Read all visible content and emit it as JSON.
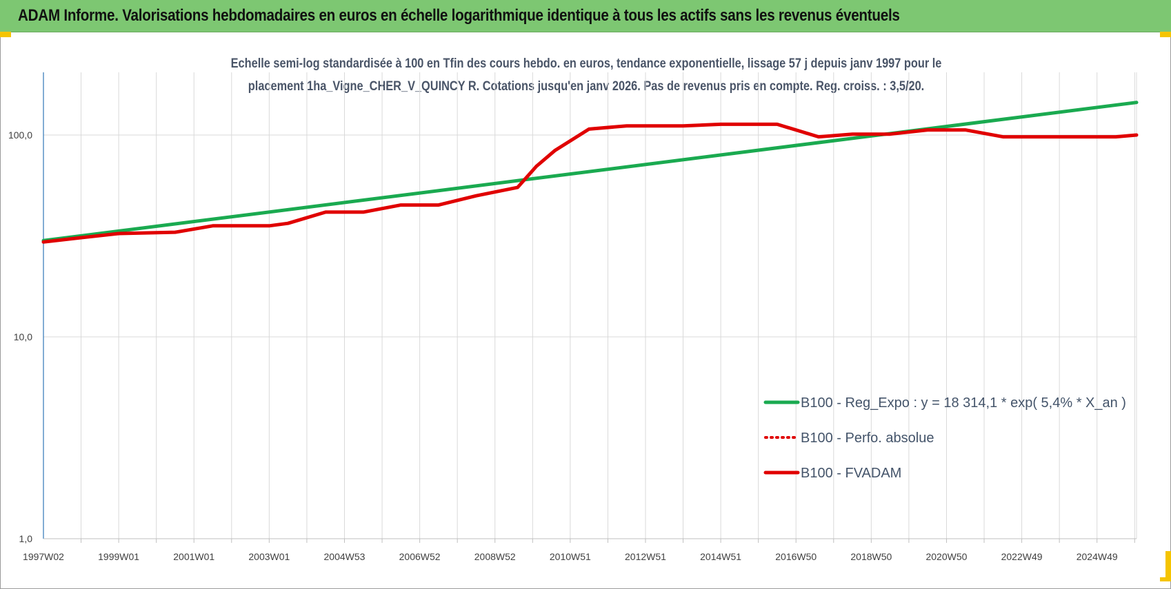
{
  "header": {
    "title": "ADAM Informe. Valorisations hebdomadaires en euros en échelle logarithmique identique à tous les actifs sans les revenus éventuels",
    "accent_color": "#7dc772",
    "corner_color": "#f5c400"
  },
  "chart_data": {
    "type": "line",
    "title_lines": [
      "Echelle semi-log standardisée à 100 en Tfin des cours hebdo. en euros, tendance exponentielle, lissage 57 j depuis janv 1997 pour le",
      "placement 1ha_Vigne_CHER_V_QUINCY R. Cotations jusqu'en janv 2026. Pas de revenus pris en compte. Reg. croiss. : 3,5/20."
    ],
    "xlabel": "",
    "ylabel": "",
    "y_scale": "log",
    "ylim": [
      1,
      200
    ],
    "y_ticks": [
      {
        "value": 1,
        "label": "1,0"
      },
      {
        "value": 10,
        "label": "10,0"
      },
      {
        "value": 100,
        "label": "100,0"
      }
    ],
    "xlim": [
      1997.0,
      2026.05
    ],
    "x_ticks": [
      {
        "value": 1997.0,
        "label": "1997W02"
      },
      {
        "value": 1999.0,
        "label": "1999W01"
      },
      {
        "value": 2001.0,
        "label": "2001W01"
      },
      {
        "value": 2003.0,
        "label": "2003W01"
      },
      {
        "value": 2005.0,
        "label": "2004W53"
      },
      {
        "value": 2007.0,
        "label": "2006W52"
      },
      {
        "value": 2009.0,
        "label": "2008W52"
      },
      {
        "value": 2011.0,
        "label": "2010W51"
      },
      {
        "value": 2013.0,
        "label": "2012W51"
      },
      {
        "value": 2015.0,
        "label": "2014W51"
      },
      {
        "value": 2017.0,
        "label": "2016W50"
      },
      {
        "value": 2019.0,
        "label": "2018W50"
      },
      {
        "value": 2021.0,
        "label": "2020W50"
      },
      {
        "value": 2023.0,
        "label": "2022W49"
      },
      {
        "value": 2025.0,
        "label": "2024W49"
      }
    ],
    "grid": true,
    "legend_position": "bottom-right",
    "series": [
      {
        "name": "B100 - Reg_Expo : y = 18 314,1 * exp( 5,4% *  X_an )",
        "color": "#1aaa50",
        "style": "solid",
        "x": [
          1997.0,
          2026.05
        ],
        "y": [
          30.0,
          145.0
        ]
      },
      {
        "name": "B100 - Perfo. absolue",
        "color": "#e00000",
        "style": "dotted",
        "x": [],
        "y": []
      },
      {
        "name": "B100 - FVADAM",
        "color": "#e00000",
        "style": "solid",
        "x": [
          1997.0,
          1998.0,
          1999.0,
          2000.5,
          2001.5,
          2003.0,
          2003.5,
          2004.5,
          2005.5,
          2006.5,
          2007.5,
          2008.5,
          2009.6,
          2010.1,
          2010.6,
          2011.5,
          2012.5,
          2014.0,
          2015.0,
          2016.5,
          2017.6,
          2018.5,
          2019.5,
          2020.5,
          2021.5,
          2022.5,
          2023.5,
          2025.5,
          2026.05
        ],
        "y": [
          29.5,
          31.0,
          32.5,
          33.0,
          35.5,
          35.5,
          36.5,
          41.5,
          41.5,
          45.0,
          45.0,
          50.0,
          55.0,
          70.0,
          84.0,
          107.0,
          111.0,
          111.0,
          113.0,
          113.0,
          98.0,
          101.0,
          101.0,
          106.0,
          106.0,
          98.0,
          98.0,
          98.0,
          100.0
        ]
      }
    ]
  }
}
